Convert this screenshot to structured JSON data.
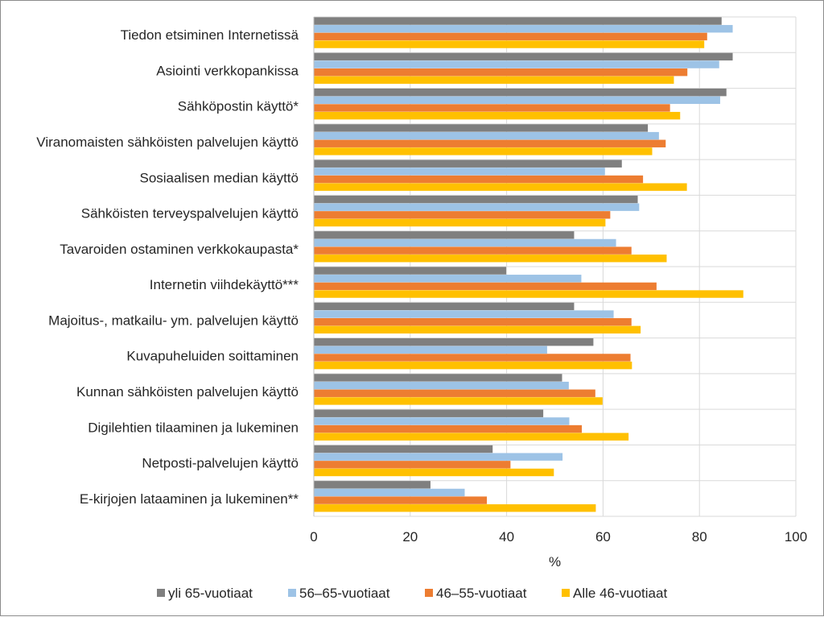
{
  "chart_data": {
    "type": "bar",
    "orientation": "horizontal",
    "categories": [
      "Tiedon etsiminen Internetissä",
      "Asiointi verkkopankissa",
      "Sähköpostin käyttö*",
      "Viranomaisten sähköisten palvelujen käyttö",
      "Sosiaalisen median käyttö",
      "Sähköisten terveyspalvelujen käyttö",
      "Tavaroiden ostaminen verkkokaupasta*",
      "Internetin viihdekäyttö***",
      "Majoitus-, matkailu- ym. palvelujen käyttö",
      "Kuvapuheluiden soittaminen",
      "Kunnan sähköisten palvelujen käyttö",
      "Digilehtien tilaaminen ja lukeminen",
      "Netposti-palvelujen käyttö",
      "E-kirjojen lataaminen ja lukeminen**"
    ],
    "series": [
      {
        "name": "yli 65-vuotiaat",
        "color": "#7f7f7f",
        "values": [
          84.6,
          86.9,
          85.6,
          69.3,
          63.9,
          67.2,
          54.0,
          39.9,
          54.0,
          58.0,
          51.5,
          47.6,
          37.1,
          24.2
        ]
      },
      {
        "name": "56–65-vuotiaat",
        "color": "#9dc3e6",
        "values": [
          86.9,
          84.1,
          84.3,
          71.6,
          60.4,
          67.5,
          62.7,
          55.5,
          62.2,
          48.4,
          52.9,
          53.0,
          51.6,
          31.3
        ]
      },
      {
        "name": "46–55-vuotiaat",
        "color": "#ed7d31",
        "values": [
          81.6,
          77.5,
          73.9,
          73.0,
          68.3,
          61.5,
          65.9,
          71.1,
          65.9,
          65.7,
          58.4,
          55.6,
          40.8,
          35.9
        ]
      },
      {
        "name": "Alle 46-vuotiaat",
        "color": "#ffc000",
        "values": [
          81.0,
          74.7,
          76.0,
          70.2,
          77.4,
          60.5,
          73.2,
          89.1,
          67.8,
          66.0,
          59.9,
          65.3,
          49.8,
          58.5
        ]
      }
    ],
    "xlabel": "%",
    "xlim": [
      0,
      100
    ],
    "xticks": [
      0,
      20,
      40,
      60,
      80,
      100
    ],
    "grid": true,
    "legend_position": "bottom"
  }
}
